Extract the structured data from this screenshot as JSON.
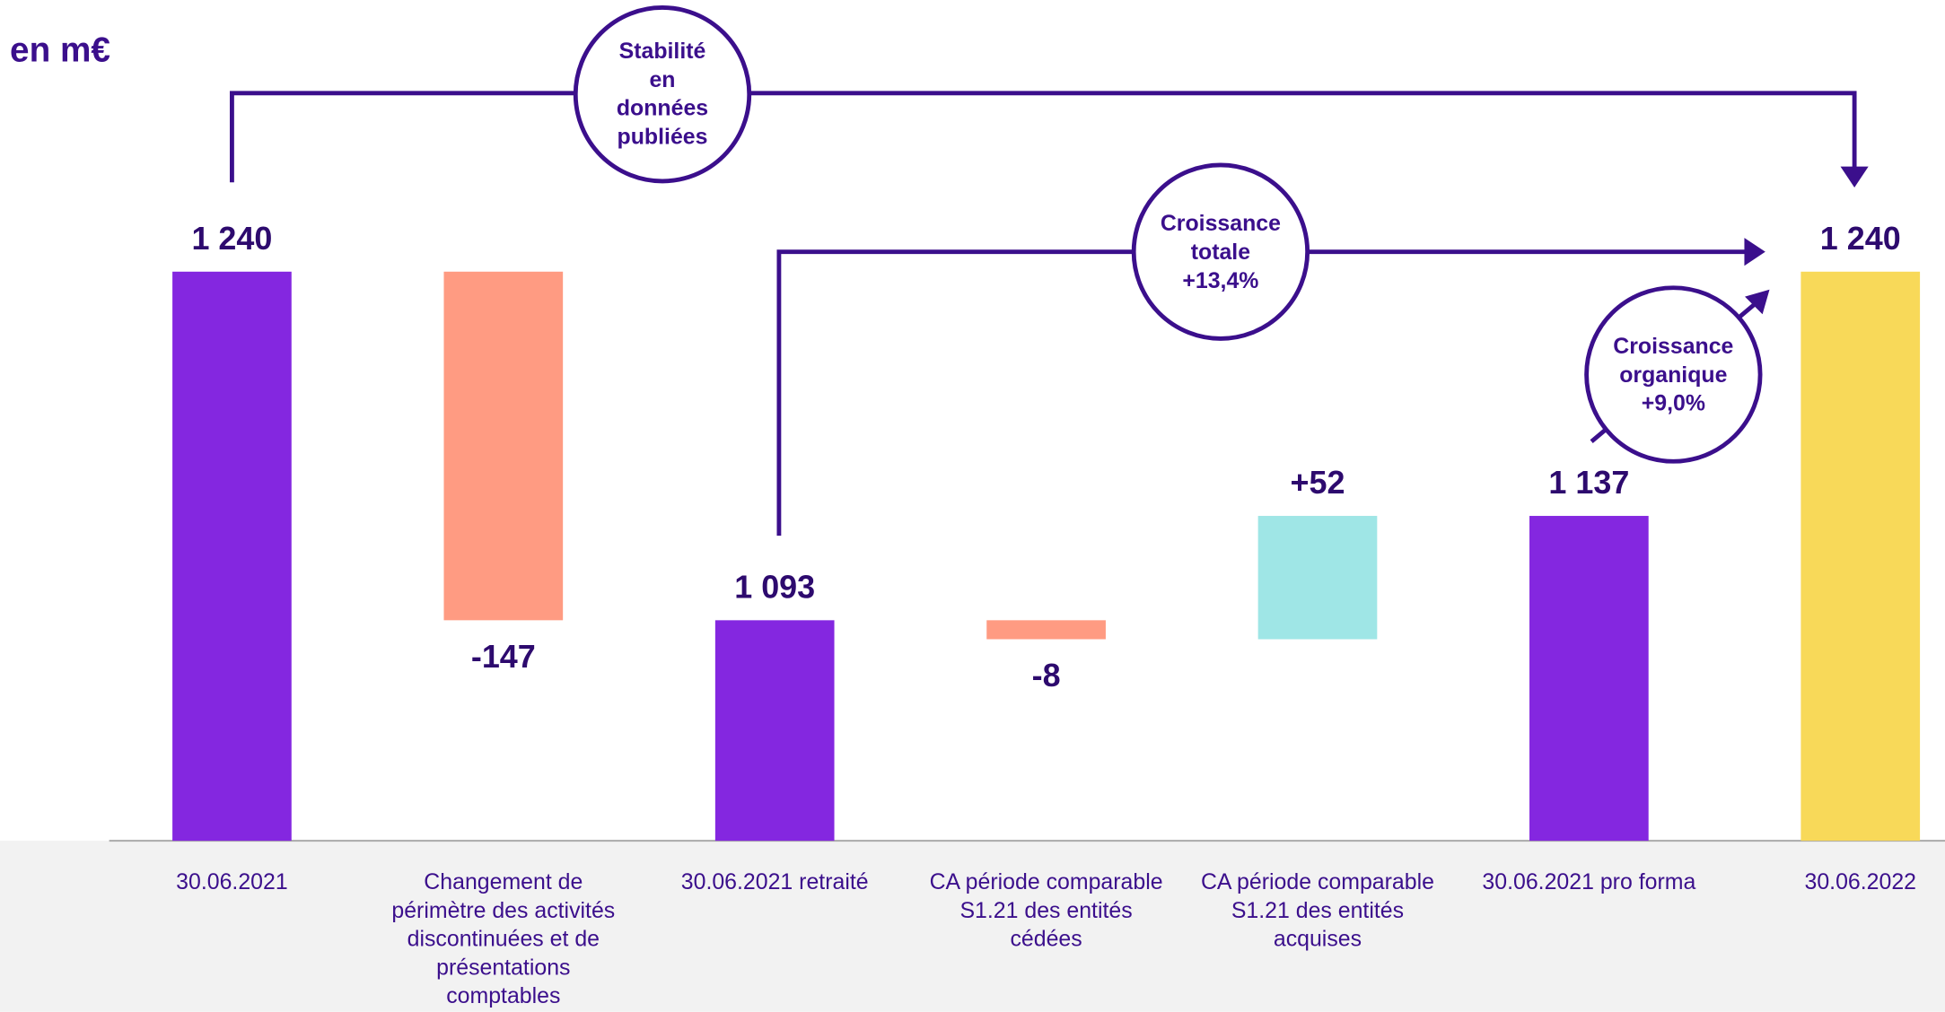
{
  "chart_data": {
    "type": "waterfall",
    "title": "en m€",
    "categories": [
      "30.06.2021",
      "Changement de périmètre des activités discontinuées et de présentations comptables",
      "30.06.2021 retraité",
      "CA période comparable S1.21 des entités cédées",
      "CA période comparable S1.21 des entités acquises",
      "30.06.2021 pro forma",
      "30.06.2022"
    ],
    "measure": [
      "total",
      "relative",
      "total",
      "relative",
      "relative",
      "total",
      "total"
    ],
    "values": [
      1240,
      -147,
      1093,
      -8,
      52,
      1137,
      1240
    ],
    "value_labels": [
      "1 240",
      "-147",
      "1 093",
      "-8",
      "+52",
      "1 137",
      "1 240"
    ],
    "colors": [
      "#8427e0",
      "#ff9b82",
      "#8427e0",
      "#ff9b82",
      "#9fe6e6",
      "#8427e0",
      "#f8d959"
    ],
    "ylim": [
      1000,
      1240
    ],
    "annotations": [
      "Stabilité en données publiées",
      "Croissance totale +13,4%",
      "Croissance organique +9,0%"
    ]
  }
}
